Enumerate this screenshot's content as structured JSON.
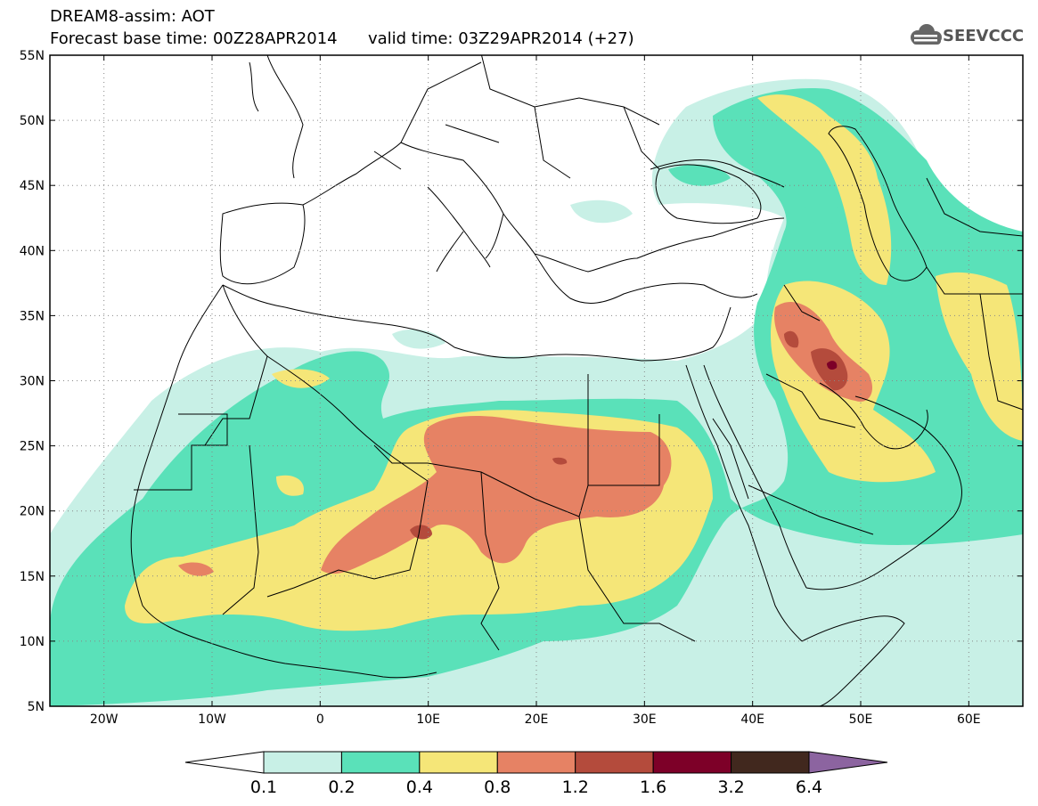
{
  "title": {
    "line1": "DREAM8-assim: AOT",
    "base_time": "Forecast base time: 00Z28APR2014",
    "valid_time": "valid time: 03Z29APR2014 (+27)"
  },
  "logo": {
    "text": "SEEVCCC",
    "icon": "cloud-icon"
  },
  "map": {
    "lon_range": [
      -25,
      65
    ],
    "lat_range": [
      5,
      55
    ],
    "lat_ticks": [
      "5N",
      "10N",
      "15N",
      "20N",
      "25N",
      "30N",
      "35N",
      "40N",
      "45N",
      "50N",
      "55N"
    ],
    "lat_values": [
      5,
      10,
      15,
      20,
      25,
      30,
      35,
      40,
      45,
      50,
      55
    ],
    "lon_ticks": [
      "20W",
      "10W",
      "0",
      "10E",
      "20E",
      "30E",
      "40E",
      "50E",
      "60E"
    ],
    "lon_values": [
      -20,
      -10,
      0,
      10,
      20,
      30,
      40,
      50,
      60
    ],
    "grid": "dotted"
  },
  "colorbar": {
    "levels": [
      "0.1",
      "0.2",
      "0.4",
      "0.8",
      "1.2",
      "1.6",
      "3.2",
      "6.4"
    ],
    "colors": [
      "#ffffff",
      "#c8f0e6",
      "#5ae1b9",
      "#f5e678",
      "#e68264",
      "#b44b3c",
      "#7d0028",
      "#41281e",
      "#8c64a0"
    ]
  },
  "aot_fields": [
    {
      "level": 1,
      "color": "#c8f0e6",
      "name": "aot-0.1-0.2"
    },
    {
      "level": 2,
      "color": "#5ae1b9",
      "name": "aot-0.2-0.4"
    },
    {
      "level": 3,
      "color": "#f5e678",
      "name": "aot-0.4-0.8"
    },
    {
      "level": 4,
      "color": "#e68264",
      "name": "aot-0.8-1.2"
    },
    {
      "level": 5,
      "color": "#b44b3c",
      "name": "aot-1.2-1.6"
    },
    {
      "level": 6,
      "color": "#7d0028",
      "name": "aot-1.6-3.2"
    }
  ]
}
